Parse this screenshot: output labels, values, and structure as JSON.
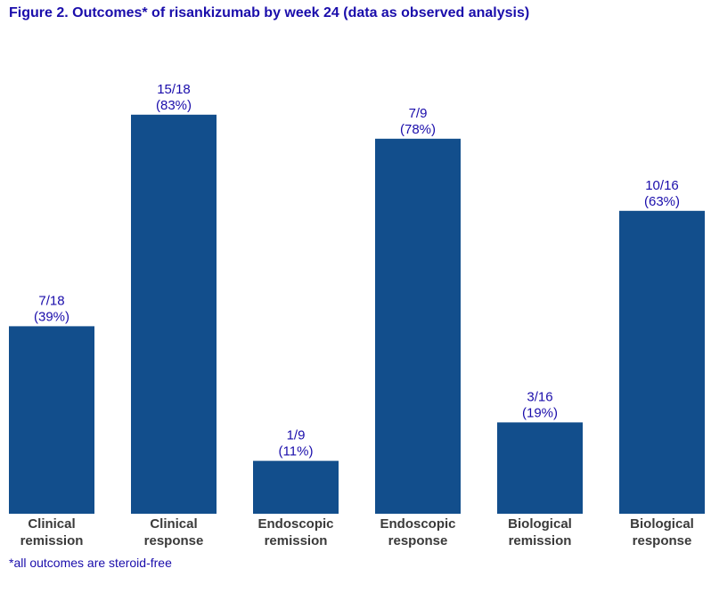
{
  "title": "Figure 2. Outcomes* of risankizumab by week 24 (data as observed analysis)",
  "footnote": "*all outcomes are steroid-free",
  "colors": {
    "bar": "#124e8c",
    "title_text": "#1a0dab",
    "value_label_text": "#1a0dab",
    "category_text": "#3a3a3a"
  },
  "chart_data": {
    "type": "bar",
    "title": "Figure 2. Outcomes* of risankizumab by week 24 (data as observed analysis)",
    "xlabel": "",
    "ylabel": "",
    "ylim": [
      0,
      100
    ],
    "grid": false,
    "legend": "none",
    "categories": [
      [
        "Clinical",
        "remission"
      ],
      [
        "Clinical",
        "response"
      ],
      [
        "Endoscopic",
        "remission"
      ],
      [
        "Endoscopic",
        "response"
      ],
      [
        "Biological",
        "remission"
      ],
      [
        "Biological",
        "response"
      ]
    ],
    "values": [
      39,
      83,
      11,
      78,
      19,
      63
    ],
    "data_labels": [
      [
        "7/18",
        "(39%)"
      ],
      [
        "15/18",
        "(83%)"
      ],
      [
        "1/9",
        "(11%)"
      ],
      [
        "7/9",
        "(78%)"
      ],
      [
        "3/16",
        "(19%)"
      ],
      [
        "10/16",
        "(63%)"
      ]
    ]
  }
}
